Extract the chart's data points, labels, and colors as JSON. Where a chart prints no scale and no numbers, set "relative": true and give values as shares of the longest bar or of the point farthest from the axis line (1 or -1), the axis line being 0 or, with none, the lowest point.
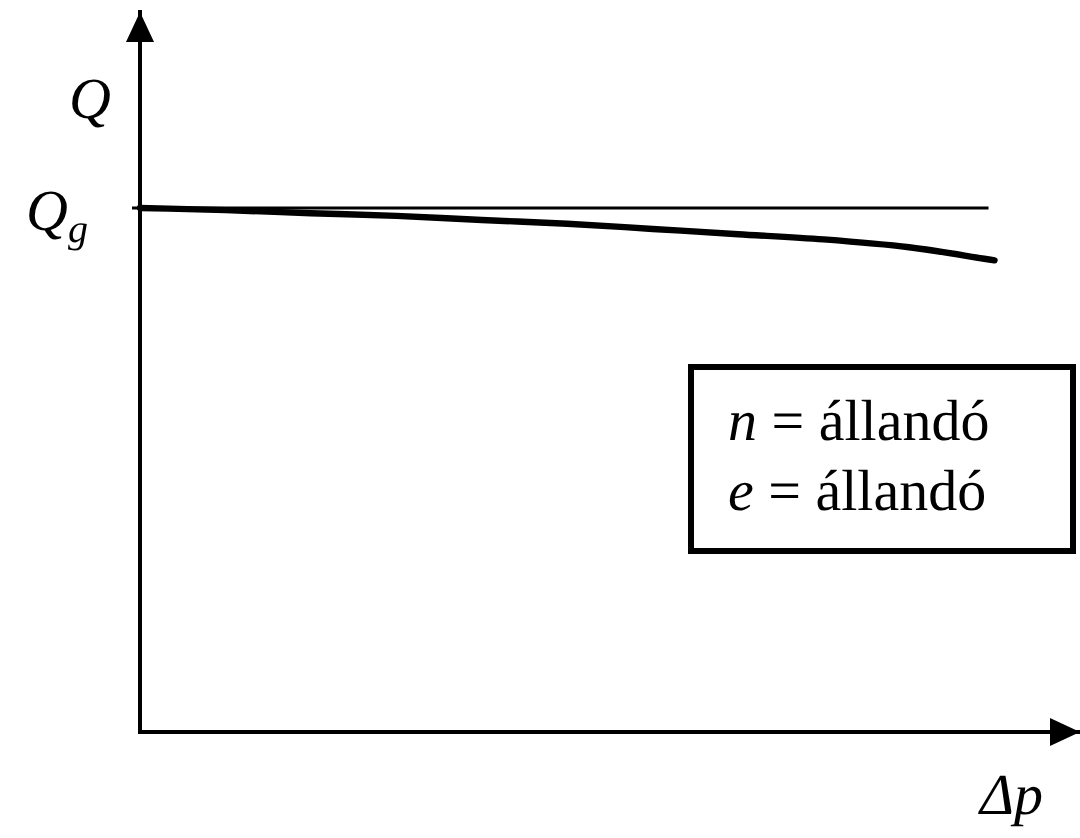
{
  "chart_data": {
    "type": "line",
    "ylabel": "Q",
    "xlabel": "Δp",
    "annotations": [
      "n = állandó",
      "e = állandó"
    ],
    "relative": true,
    "categories": [
      null,
      null,
      null,
      null,
      null,
      null,
      null,
      null,
      null,
      null,
      null,
      null
    ],
    "series": [
      {
        "color": "#000000",
        "values": [
          1.0,
          0.996,
          0.99,
          0.985,
          0.977,
          0.97,
          0.96,
          0.95,
          0.94,
          0.925,
          0.9,
          null
        ]
      }
    ],
    "ref_lines": [
      {
        "axis": "y",
        "value": 1,
        "label": "Q$_{g}$",
        "color": "#000000"
      }
    ],
    "marker": "none",
    "line_style": "solid"
  }
}
